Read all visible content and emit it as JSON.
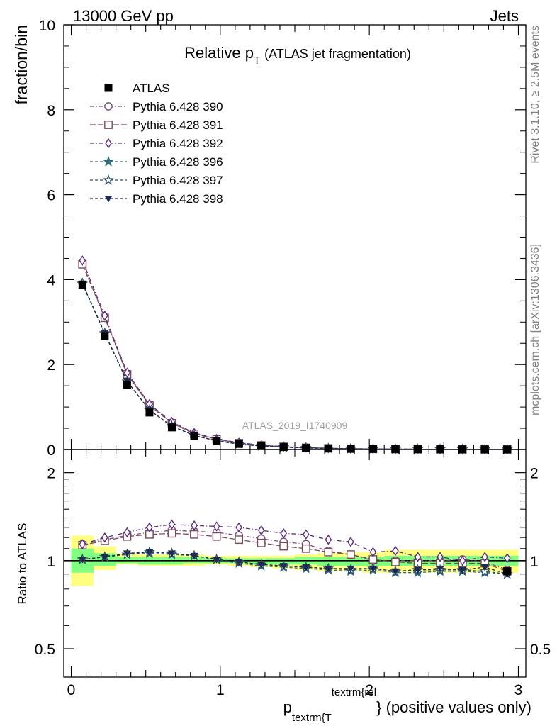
{
  "header": {
    "left": "13000 GeV pp",
    "right": "Jets"
  },
  "side_text": {
    "rivet": "Rivet 3.1.10, ≥ 2.5M events",
    "site": "mcplots.cern.ch [arXiv:1306.3436]"
  },
  "watermark": "ATLAS_2019_I1740909",
  "colors": {
    "p390": "#7b4a7f",
    "p391": "#7d4a52",
    "p392": "#5a2d82",
    "p396": "#2f6a7d",
    "p397": "#2b4e6b",
    "p398": "#1f2a4f",
    "band_yellow": "#ffff80",
    "band_green": "#80ff80"
  },
  "chart_data": [
    {
      "type": "line",
      "title_main": "Relative p",
      "title_sub": "T",
      "title_note": "(ATLAS jet fragmentation)",
      "ylabel": "fraction/bin",
      "xlim": [
        -0.05,
        3.05
      ],
      "ylim": [
        0,
        10
      ],
      "yticks": [
        0,
        2,
        4,
        6,
        8,
        10
      ],
      "x": [
        0.075,
        0.225,
        0.375,
        0.525,
        0.675,
        0.825,
        0.975,
        1.125,
        1.275,
        1.425,
        1.575,
        1.725,
        1.875,
        2.025,
        2.175,
        2.325,
        2.475,
        2.625,
        2.775,
        2.925
      ],
      "data": {
        "name": "ATLAS",
        "values": [
          3.88,
          2.67,
          1.52,
          0.87,
          0.52,
          0.31,
          0.2,
          0.13,
          0.085,
          0.057,
          0.038,
          0.026,
          0.018,
          0.013,
          0.009,
          0.007,
          0.005,
          0.004,
          0.003,
          0.002
        ]
      },
      "series": [
        {
          "name": "Pythia 6.428 390",
          "marker": "circle",
          "dash": "6,3,1,3",
          "color_key": "p390",
          "values": [
            4.38,
            3.12,
            1.78,
            1.05,
            0.63,
            0.38,
            0.24,
            0.155,
            0.1,
            0.066,
            0.043,
            0.028,
            0.019,
            0.013,
            0.009,
            0.0068,
            0.005,
            0.0041,
            0.003,
            0.0018
          ]
        },
        {
          "name": "Pythia 6.428 391",
          "marker": "square",
          "dash": "8,3",
          "color_key": "p391",
          "values": [
            4.36,
            3.1,
            1.77,
            1.04,
            0.62,
            0.37,
            0.24,
            0.15,
            0.097,
            0.064,
            0.042,
            0.028,
            0.019,
            0.013,
            0.0089,
            0.0067,
            0.0049,
            0.004,
            0.0029,
            0.0018
          ]
        },
        {
          "name": "Pythia 6.428 392",
          "marker": "diamond",
          "dash": "6,3,1,3",
          "color_key": "p392",
          "values": [
            4.45,
            3.15,
            1.81,
            1.07,
            0.65,
            0.39,
            0.25,
            0.16,
            0.103,
            0.069,
            0.045,
            0.03,
            0.02,
            0.0138,
            0.0095,
            0.0072,
            0.0052,
            0.0041,
            0.0031,
            0.002
          ]
        },
        {
          "name": "Pythia 6.428 396",
          "marker": "star-filled",
          "dash": "4,3",
          "color_key": "p396",
          "values": [
            3.9,
            2.73,
            1.6,
            0.93,
            0.55,
            0.33,
            0.205,
            0.127,
            0.082,
            0.054,
            0.036,
            0.024,
            0.017,
            0.0121,
            0.0082,
            0.0063,
            0.0046,
            0.0037,
            0.0027,
            0.0018
          ]
        },
        {
          "name": "Pythia 6.428 397",
          "marker": "star-open",
          "dash": "4,3",
          "color_key": "p397",
          "values": [
            3.92,
            2.74,
            1.6,
            0.93,
            0.55,
            0.33,
            0.205,
            0.128,
            0.083,
            0.055,
            0.036,
            0.025,
            0.017,
            0.0122,
            0.0083,
            0.0064,
            0.0047,
            0.0037,
            0.0027,
            0.0018
          ]
        },
        {
          "name": "Pythia 6.428 398",
          "marker": "triangle-down",
          "dash": "4,3",
          "color_key": "p398",
          "values": [
            3.91,
            2.74,
            1.61,
            0.93,
            0.55,
            0.33,
            0.205,
            0.128,
            0.083,
            0.055,
            0.037,
            0.025,
            0.017,
            0.0123,
            0.0084,
            0.0064,
            0.0047,
            0.0037,
            0.0027,
            0.0018
          ]
        }
      ]
    },
    {
      "type": "line",
      "ylabel": "Ratio to ATLAS",
      "xlabel_main": "p",
      "xlabel_sub": "textrm{T",
      "xlabel_sup": "textrm{rel",
      "xlabel_tail": "} (positive values only)",
      "xlim": [
        -0.05,
        3.05
      ],
      "ylim": [
        0.4,
        2.4
      ],
      "yscale": "log",
      "yticks": [
        0.5,
        1,
        2
      ],
      "xticks": [
        0,
        1,
        2,
        3
      ],
      "x_edges": [
        0,
        0.15,
        0.3,
        0.45,
        0.6,
        0.75,
        0.9,
        1.05,
        1.2,
        1.35,
        1.5,
        1.65,
        1.8,
        1.95,
        2.1,
        2.25,
        2.4,
        2.55,
        2.7,
        2.85,
        3.0
      ],
      "band_yellow": [
        [
          0.82,
          1.22
        ],
        [
          0.93,
          1.12
        ],
        [
          0.97,
          1.06
        ],
        [
          0.96,
          1.05
        ],
        [
          0.96,
          1.05
        ],
        [
          0.96,
          1.05
        ],
        [
          0.97,
          1.04
        ],
        [
          0.96,
          1.04
        ],
        [
          0.95,
          1.04
        ],
        [
          0.94,
          1.04
        ],
        [
          0.93,
          1.05
        ],
        [
          0.92,
          1.06
        ],
        [
          0.92,
          1.07
        ],
        [
          0.91,
          1.07
        ],
        [
          0.91,
          1.09
        ],
        [
          0.91,
          1.09
        ],
        [
          0.91,
          1.09
        ],
        [
          0.91,
          1.09
        ],
        [
          0.91,
          1.09
        ],
        [
          0.91,
          1.09
        ]
      ],
      "band_green": [
        [
          0.91,
          1.1
        ],
        [
          0.96,
          1.06
        ],
        [
          0.98,
          1.03
        ],
        [
          0.97,
          1.03
        ],
        [
          0.97,
          1.03
        ],
        [
          0.98,
          1.03
        ],
        [
          0.98,
          1.02
        ],
        [
          0.98,
          1.02
        ],
        [
          0.97,
          1.02
        ],
        [
          0.97,
          1.02
        ],
        [
          0.97,
          1.03
        ],
        [
          0.96,
          1.03
        ],
        [
          0.96,
          1.03
        ],
        [
          0.96,
          1.03
        ],
        [
          0.96,
          1.04
        ],
        [
          0.96,
          1.04
        ],
        [
          0.96,
          1.04
        ],
        [
          0.96,
          1.04
        ],
        [
          0.96,
          1.04
        ],
        [
          0.96,
          1.04
        ]
      ],
      "x": [
        0.075,
        0.225,
        0.375,
        0.525,
        0.675,
        0.825,
        0.975,
        1.125,
        1.275,
        1.425,
        1.575,
        1.725,
        1.875,
        2.025,
        2.175,
        2.325,
        2.475,
        2.625,
        2.775,
        2.925
      ],
      "series": [
        {
          "name": "Pythia 6.428 390",
          "marker": "circle",
          "dash": "6,3,1,3",
          "color_key": "p390",
          "values": [
            1.14,
            1.18,
            1.22,
            1.25,
            1.27,
            1.26,
            1.25,
            1.22,
            1.19,
            1.16,
            1.14,
            1.08,
            1.05,
            1.0,
            1.0,
            1.0,
            1.0,
            1.01,
            0.99,
            0.93
          ]
        },
        {
          "name": "Pythia 6.428 391",
          "marker": "square",
          "dash": "8,3",
          "color_key": "p391",
          "values": [
            1.13,
            1.17,
            1.21,
            1.23,
            1.24,
            1.23,
            1.21,
            1.18,
            1.15,
            1.12,
            1.1,
            1.07,
            1.05,
            1.01,
            0.99,
            0.98,
            0.98,
            0.98,
            0.98,
            0.92
          ]
        },
        {
          "name": "Pythia 6.428 392",
          "marker": "diamond",
          "dash": "6,3,1,3",
          "color_key": "p392",
          "values": [
            1.14,
            1.2,
            1.25,
            1.3,
            1.33,
            1.32,
            1.31,
            1.3,
            1.27,
            1.24,
            1.23,
            1.18,
            1.16,
            1.07,
            1.08,
            1.03,
            1.03,
            1.0,
            1.03,
            1.02
          ]
        },
        {
          "name": "Pythia 6.428 396",
          "marker": "star-filled",
          "dash": "4,3",
          "color_key": "p396",
          "values": [
            1.01,
            1.03,
            1.05,
            1.06,
            1.05,
            1.04,
            1.01,
            0.98,
            0.96,
            0.95,
            0.94,
            0.93,
            0.92,
            0.93,
            0.91,
            0.91,
            0.92,
            0.92,
            0.91,
            0.9
          ]
        },
        {
          "name": "Pythia 6.428 397",
          "marker": "star-open",
          "dash": "4,3",
          "color_key": "p397",
          "values": [
            1.01,
            1.03,
            1.05,
            1.07,
            1.06,
            1.04,
            1.01,
            0.99,
            0.97,
            0.96,
            0.95,
            0.94,
            0.93,
            0.94,
            0.92,
            0.93,
            0.93,
            0.93,
            0.92,
            0.9
          ]
        },
        {
          "name": "Pythia 6.428 398",
          "marker": "triangle-down",
          "dash": "4,3",
          "color_key": "p398",
          "values": [
            1.01,
            1.03,
            1.06,
            1.07,
            1.06,
            1.04,
            1.01,
            0.99,
            0.97,
            0.96,
            0.95,
            0.94,
            0.94,
            0.94,
            0.92,
            0.93,
            0.94,
            0.93,
            0.95,
            0.9
          ]
        }
      ]
    }
  ]
}
